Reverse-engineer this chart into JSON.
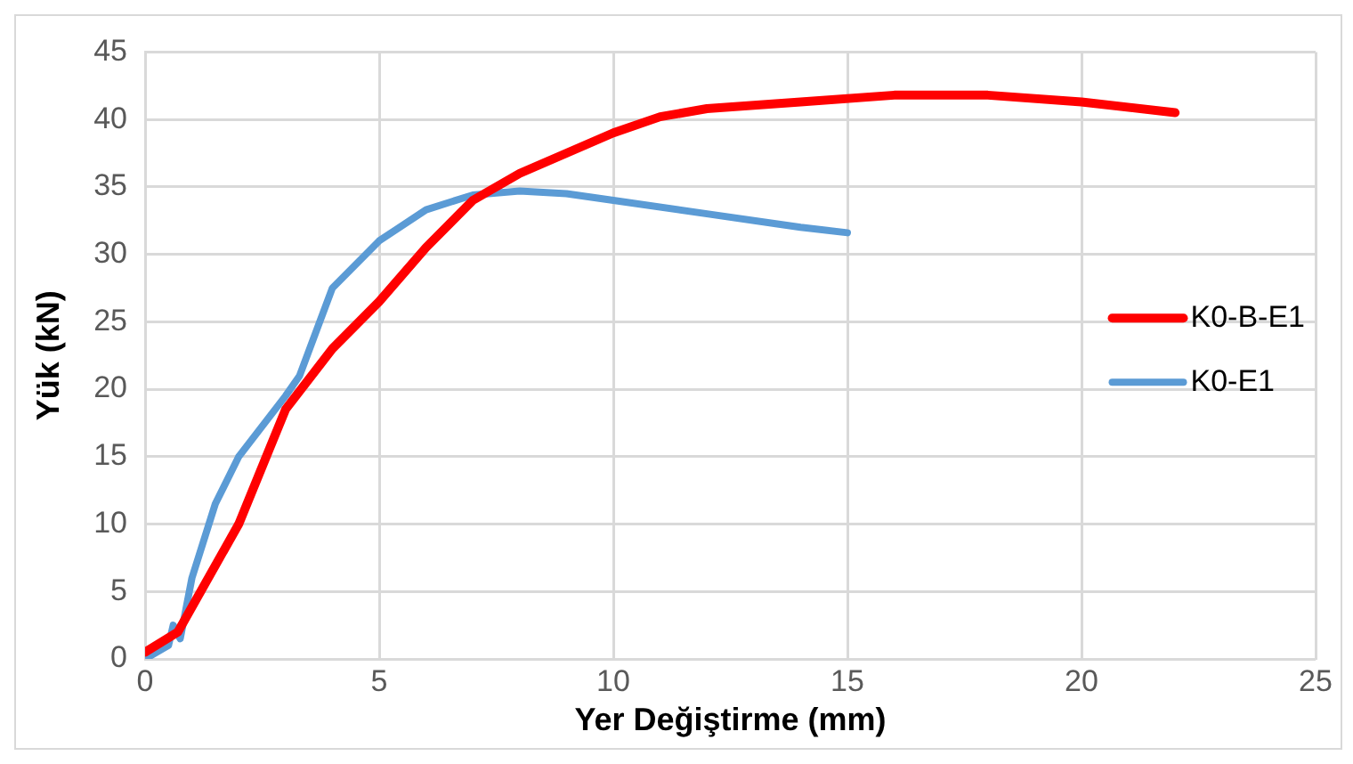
{
  "chart_data": {
    "type": "line",
    "xlabel": "Yer Değiştirme (mm)",
    "ylabel": "Yük (kN)",
    "xlim": [
      0,
      25
    ],
    "xticks": [
      0,
      5,
      10,
      15,
      20,
      25
    ],
    "ylim": [
      0,
      45
    ],
    "yticks": [
      0,
      5,
      10,
      15,
      20,
      25,
      30,
      35,
      40,
      45
    ],
    "grid": true,
    "legend": "right",
    "marker": "none",
    "line_style": "solid",
    "series": [
      {
        "name": "K0-B-E1",
        "color": "#ff0000",
        "x": [
          0,
          0.7,
          2,
          3,
          4,
          5,
          6,
          7,
          8,
          9,
          10,
          11,
          12,
          14,
          16,
          18,
          20,
          22
        ],
        "values": [
          0.5,
          2,
          10,
          18.5,
          23,
          26.5,
          30.5,
          34,
          36,
          37.5,
          39,
          40.2,
          40.8,
          41.3,
          41.8,
          41.8,
          41.3,
          40.5
        ]
      },
      {
        "name": "K0-E1",
        "color": "#5b9bd5",
        "x": [
          0,
          0.5,
          0.6,
          0.75,
          1,
          1.5,
          2,
          3,
          3.3,
          4,
          5,
          6,
          7,
          8,
          9,
          10,
          12,
          14,
          15
        ],
        "values": [
          0,
          1,
          2.5,
          1.5,
          6,
          11.5,
          15,
          19.5,
          21,
          27.5,
          31,
          33.3,
          34.4,
          34.7,
          34.5,
          34,
          33,
          32,
          31.6
        ]
      }
    ]
  }
}
